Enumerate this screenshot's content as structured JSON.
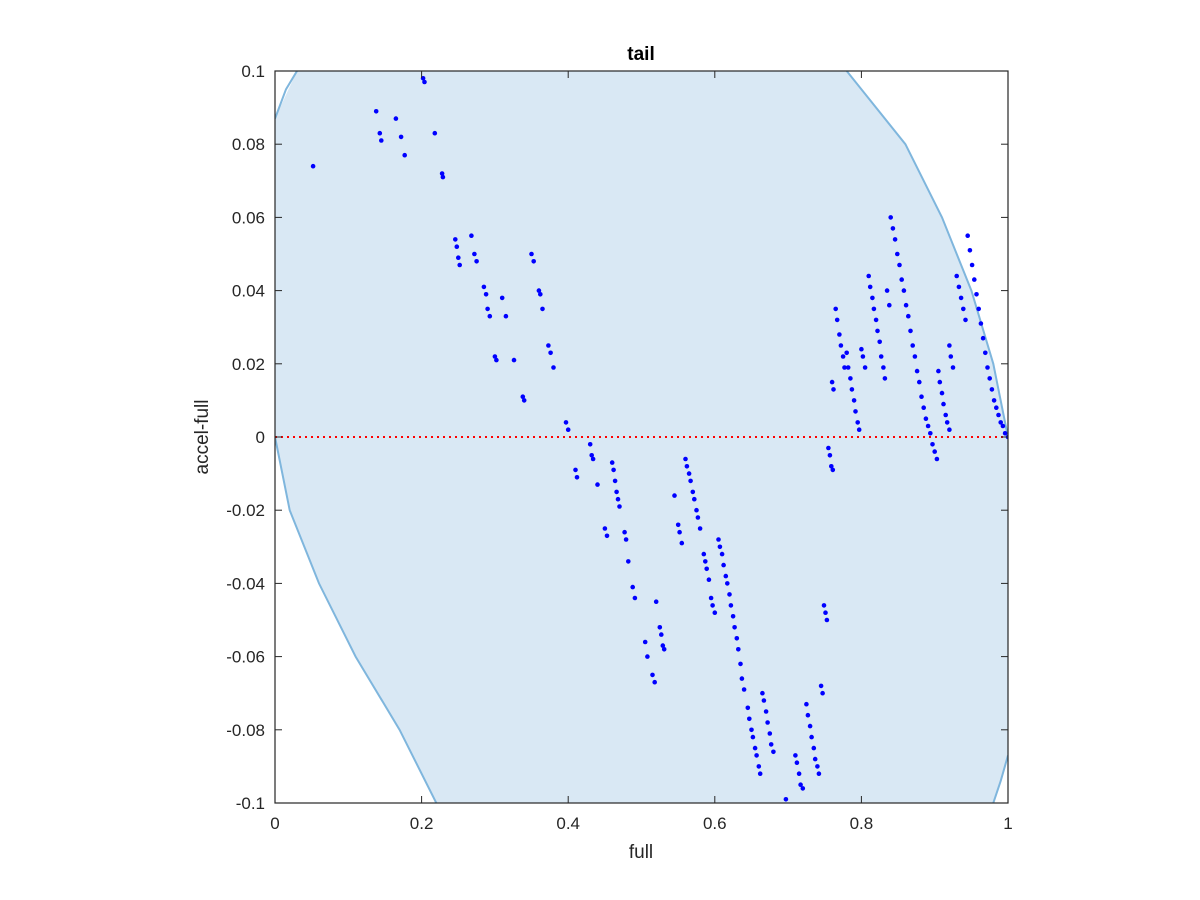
{
  "chart_data": {
    "type": "scatter",
    "title": "tail",
    "xlabel": "full",
    "ylabel": "accel-full",
    "xlim": [
      0,
      1
    ],
    "ylim": [
      -0.1,
      0.1
    ],
    "xticks": [
      "0",
      "0.2",
      "0.4",
      "0.6",
      "0.8",
      "1"
    ],
    "yticks": [
      "-0.1",
      "-0.08",
      "-0.06",
      "-0.04",
      "-0.02",
      "0",
      "0.02",
      "0.04",
      "0.06",
      "0.08",
      "0.1"
    ],
    "grid": false,
    "legend": "none",
    "region_boundary": {
      "description": "shaded region between two curves",
      "left_curve": [
        [
          0.0,
          0.087
        ],
        [
          0.03,
          0.1
        ],
        [
          0.0,
          0.0
        ],
        [
          0.02,
          -0.02
        ],
        [
          0.06,
          -0.04
        ],
        [
          0.11,
          -0.06
        ],
        [
          0.17,
          -0.08
        ],
        [
          0.22,
          -0.1
        ]
      ],
      "right_curve": [
        [
          0.78,
          0.1
        ],
        [
          0.86,
          0.08
        ],
        [
          0.91,
          0.06
        ],
        [
          0.95,
          0.04
        ],
        [
          0.98,
          0.02
        ],
        [
          1.0,
          0.0
        ],
        [
          0.98,
          -0.1
        ],
        [
          1.0,
          -0.087
        ]
      ]
    },
    "reference_line": {
      "y": 0,
      "style": "dotted",
      "color": "#ff0000"
    },
    "colors": {
      "points": "#0000ff",
      "region_fill": "#d9e8f4",
      "region_edge": "#7fb6dd",
      "axes": "#262626"
    },
    "series": [
      {
        "values": [
          [
            0.052,
            0.074
          ],
          [
            0.138,
            0.089
          ],
          [
            0.143,
            0.083
          ],
          [
            0.145,
            0.081
          ],
          [
            0.165,
            0.087
          ],
          [
            0.172,
            0.082
          ],
          [
            0.177,
            0.077
          ],
          [
            0.202,
            0.098
          ],
          [
            0.204,
            0.097
          ],
          [
            0.218,
            0.083
          ],
          [
            0.228,
            0.072
          ],
          [
            0.229,
            0.071
          ],
          [
            0.246,
            0.054
          ],
          [
            0.248,
            0.052
          ],
          [
            0.25,
            0.049
          ],
          [
            0.252,
            0.047
          ],
          [
            0.268,
            0.055
          ],
          [
            0.272,
            0.05
          ],
          [
            0.275,
            0.048
          ],
          [
            0.285,
            0.041
          ],
          [
            0.288,
            0.039
          ],
          [
            0.29,
            0.035
          ],
          [
            0.293,
            0.033
          ],
          [
            0.3,
            0.022
          ],
          [
            0.302,
            0.021
          ],
          [
            0.31,
            0.038
          ],
          [
            0.315,
            0.033
          ],
          [
            0.326,
            0.021
          ],
          [
            0.338,
            0.011
          ],
          [
            0.34,
            0.01
          ],
          [
            0.35,
            0.05
          ],
          [
            0.353,
            0.048
          ],
          [
            0.36,
            0.04
          ],
          [
            0.362,
            0.039
          ],
          [
            0.365,
            0.035
          ],
          [
            0.373,
            0.025
          ],
          [
            0.376,
            0.023
          ],
          [
            0.38,
            0.019
          ],
          [
            0.397,
            0.004
          ],
          [
            0.4,
            0.002
          ],
          [
            0.41,
            -0.009
          ],
          [
            0.412,
            -0.011
          ],
          [
            0.43,
            -0.002
          ],
          [
            0.432,
            -0.005
          ],
          [
            0.434,
            -0.006
          ],
          [
            0.44,
            -0.013
          ],
          [
            0.45,
            -0.025
          ],
          [
            0.453,
            -0.027
          ],
          [
            0.46,
            -0.007
          ],
          [
            0.462,
            -0.009
          ],
          [
            0.464,
            -0.012
          ],
          [
            0.466,
            -0.015
          ],
          [
            0.468,
            -0.017
          ],
          [
            0.47,
            -0.019
          ],
          [
            0.477,
            -0.026
          ],
          [
            0.479,
            -0.028
          ],
          [
            0.482,
            -0.034
          ],
          [
            0.488,
            -0.041
          ],
          [
            0.491,
            -0.044
          ],
          [
            0.505,
            -0.056
          ],
          [
            0.508,
            -0.06
          ],
          [
            0.515,
            -0.065
          ],
          [
            0.518,
            -0.067
          ],
          [
            0.52,
            -0.045
          ],
          [
            0.525,
            -0.052
          ],
          [
            0.527,
            -0.054
          ],
          [
            0.529,
            -0.057
          ],
          [
            0.531,
            -0.058
          ],
          [
            0.545,
            -0.016
          ],
          [
            0.55,
            -0.024
          ],
          [
            0.552,
            -0.026
          ],
          [
            0.555,
            -0.029
          ],
          [
            0.56,
            -0.006
          ],
          [
            0.562,
            -0.008
          ],
          [
            0.565,
            -0.01
          ],
          [
            0.567,
            -0.012
          ],
          [
            0.57,
            -0.015
          ],
          [
            0.572,
            -0.017
          ],
          [
            0.575,
            -0.02
          ],
          [
            0.577,
            -0.022
          ],
          [
            0.58,
            -0.025
          ],
          [
            0.585,
            -0.032
          ],
          [
            0.587,
            -0.034
          ],
          [
            0.589,
            -0.036
          ],
          [
            0.592,
            -0.039
          ],
          [
            0.595,
            -0.044
          ],
          [
            0.597,
            -0.046
          ],
          [
            0.6,
            -0.048
          ],
          [
            0.605,
            -0.028
          ],
          [
            0.607,
            -0.03
          ],
          [
            0.61,
            -0.032
          ],
          [
            0.612,
            -0.035
          ],
          [
            0.615,
            -0.038
          ],
          [
            0.617,
            -0.04
          ],
          [
            0.62,
            -0.043
          ],
          [
            0.622,
            -0.046
          ],
          [
            0.625,
            -0.049
          ],
          [
            0.627,
            -0.052
          ],
          [
            0.63,
            -0.055
          ],
          [
            0.632,
            -0.058
          ],
          [
            0.635,
            -0.062
          ],
          [
            0.637,
            -0.066
          ],
          [
            0.64,
            -0.069
          ],
          [
            0.645,
            -0.074
          ],
          [
            0.647,
            -0.077
          ],
          [
            0.65,
            -0.08
          ],
          [
            0.652,
            -0.082
          ],
          [
            0.655,
            -0.085
          ],
          [
            0.657,
            -0.087
          ],
          [
            0.66,
            -0.09
          ],
          [
            0.662,
            -0.092
          ],
          [
            0.665,
            -0.07
          ],
          [
            0.667,
            -0.072
          ],
          [
            0.67,
            -0.075
          ],
          [
            0.672,
            -0.078
          ],
          [
            0.675,
            -0.081
          ],
          [
            0.677,
            -0.084
          ],
          [
            0.68,
            -0.086
          ],
          [
            0.697,
            -0.099
          ],
          [
            0.71,
            -0.087
          ],
          [
            0.712,
            -0.089
          ],
          [
            0.715,
            -0.092
          ],
          [
            0.717,
            -0.095
          ],
          [
            0.72,
            -0.096
          ],
          [
            0.725,
            -0.073
          ],
          [
            0.727,
            -0.076
          ],
          [
            0.73,
            -0.079
          ],
          [
            0.732,
            -0.082
          ],
          [
            0.735,
            -0.085
          ],
          [
            0.737,
            -0.088
          ],
          [
            0.74,
            -0.09
          ],
          [
            0.742,
            -0.092
          ],
          [
            0.745,
            -0.068
          ],
          [
            0.747,
            -0.07
          ],
          [
            0.749,
            -0.046
          ],
          [
            0.751,
            -0.048
          ],
          [
            0.753,
            -0.05
          ],
          [
            0.755,
            -0.003
          ],
          [
            0.757,
            -0.005
          ],
          [
            0.759,
            -0.008
          ],
          [
            0.761,
            -0.009
          ],
          [
            0.76,
            0.015
          ],
          [
            0.762,
            0.013
          ],
          [
            0.765,
            0.035
          ],
          [
            0.767,
            0.032
          ],
          [
            0.77,
            0.028
          ],
          [
            0.772,
            0.025
          ],
          [
            0.775,
            0.022
          ],
          [
            0.777,
            0.019
          ],
          [
            0.78,
            0.023
          ],
          [
            0.782,
            0.019
          ],
          [
            0.785,
            0.016
          ],
          [
            0.787,
            0.013
          ],
          [
            0.79,
            0.01
          ],
          [
            0.792,
            0.007
          ],
          [
            0.795,
            0.004
          ],
          [
            0.797,
            0.002
          ],
          [
            0.8,
            0.024
          ],
          [
            0.802,
            0.022
          ],
          [
            0.805,
            0.019
          ],
          [
            0.81,
            0.044
          ],
          [
            0.812,
            0.041
          ],
          [
            0.815,
            0.038
          ],
          [
            0.817,
            0.035
          ],
          [
            0.82,
            0.032
          ],
          [
            0.822,
            0.029
          ],
          [
            0.825,
            0.026
          ],
          [
            0.827,
            0.022
          ],
          [
            0.83,
            0.019
          ],
          [
            0.832,
            0.016
          ],
          [
            0.835,
            0.04
          ],
          [
            0.838,
            0.036
          ],
          [
            0.84,
            0.06
          ],
          [
            0.843,
            0.057
          ],
          [
            0.846,
            0.054
          ],
          [
            0.849,
            0.05
          ],
          [
            0.852,
            0.047
          ],
          [
            0.855,
            0.043
          ],
          [
            0.858,
            0.04
          ],
          [
            0.861,
            0.036
          ],
          [
            0.864,
            0.033
          ],
          [
            0.867,
            0.029
          ],
          [
            0.87,
            0.025
          ],
          [
            0.873,
            0.022
          ],
          [
            0.876,
            0.018
          ],
          [
            0.879,
            0.015
          ],
          [
            0.882,
            0.011
          ],
          [
            0.885,
            0.008
          ],
          [
            0.888,
            0.005
          ],
          [
            0.891,
            0.003
          ],
          [
            0.894,
            0.001
          ],
          [
            0.897,
            -0.002
          ],
          [
            0.9,
            -0.004
          ],
          [
            0.903,
            -0.006
          ],
          [
            0.905,
            0.018
          ],
          [
            0.907,
            0.015
          ],
          [
            0.91,
            0.012
          ],
          [
            0.912,
            0.009
          ],
          [
            0.915,
            0.006
          ],
          [
            0.917,
            0.004
          ],
          [
            0.92,
            0.002
          ],
          [
            0.92,
            0.025
          ],
          [
            0.922,
            0.022
          ],
          [
            0.925,
            0.019
          ],
          [
            0.93,
            0.044
          ],
          [
            0.933,
            0.041
          ],
          [
            0.936,
            0.038
          ],
          [
            0.939,
            0.035
          ],
          [
            0.942,
            0.032
          ],
          [
            0.945,
            0.055
          ],
          [
            0.948,
            0.051
          ],
          [
            0.951,
            0.047
          ],
          [
            0.954,
            0.043
          ],
          [
            0.957,
            0.039
          ],
          [
            0.96,
            0.035
          ],
          [
            0.963,
            0.031
          ],
          [
            0.966,
            0.027
          ],
          [
            0.969,
            0.023
          ],
          [
            0.972,
            0.019
          ],
          [
            0.975,
            0.016
          ],
          [
            0.978,
            0.013
          ],
          [
            0.981,
            0.01
          ],
          [
            0.984,
            0.008
          ],
          [
            0.987,
            0.006
          ],
          [
            0.99,
            0.004
          ],
          [
            0.993,
            0.003
          ],
          [
            0.996,
            0.001
          ],
          [
            1.0,
            0.0
          ]
        ]
      }
    ]
  }
}
